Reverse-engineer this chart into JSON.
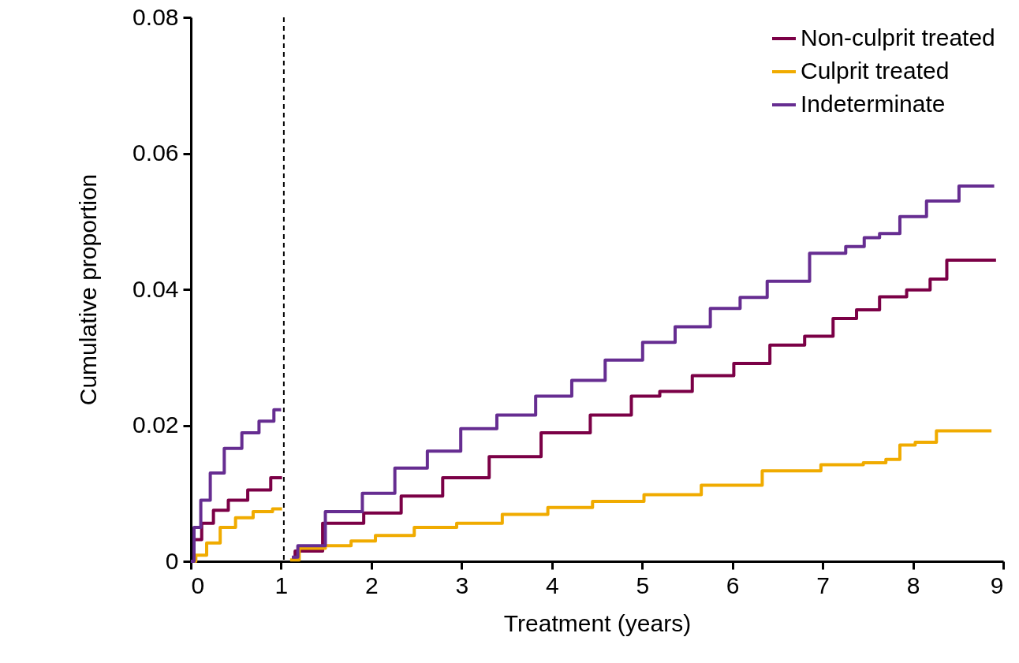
{
  "chart_data": {
    "type": "step",
    "xlabel": "Treatment (years)",
    "ylabel": "Cumulative proportion",
    "xlim": [
      0,
      9
    ],
    "xticks": [
      0,
      1,
      2,
      3,
      4,
      5,
      6,
      7,
      8,
      9
    ],
    "ylim": [
      0,
      0.08
    ],
    "yticks": [
      0,
      0.02,
      0.04,
      0.06,
      0.08
    ],
    "grid": false,
    "legend": "top right",
    "line_style": "solid",
    "marker": "none",
    "ref_lines": [
      {
        "axis": "x",
        "value": 1.03,
        "line_style": "dashed",
        "color": "#000000"
      }
    ],
    "series": [
      {
        "name": "Non-culprit treated",
        "color": "#7b0046",
        "x": [
          0,
          0.07,
          0.17,
          0.33,
          0.5,
          0.76,
          1.01,
          null,
          1.12,
          1.19,
          1.73,
          2.1,
          2.56,
          3.02,
          3.59,
          4.17,
          4.68,
          5.08,
          5.31,
          5.8,
          6.23,
          6.6,
          7.0,
          7.23,
          7.52,
          7.74,
          8.12,
          8.26,
          8.49,
          8.92
        ],
        "values": [
          0,
          0.0032,
          0.0056,
          0.0075,
          0.009,
          0.0105,
          0.0123,
          null,
          0.0005,
          0.0015,
          0.0056,
          0.0071,
          0.0096,
          0.0123,
          0.0154,
          0.0189,
          0.0215,
          0.0243,
          0.025,
          0.0273,
          0.0291,
          0.0318,
          0.0331,
          0.0357,
          0.037,
          0.0389,
          0.0399,
          0.0415,
          0.0443,
          0.0443
        ]
      },
      {
        "name": "Culprit treated",
        "color": "#f0ab00",
        "x": [
          0,
          0.11,
          0.24,
          0.41,
          0.58,
          0.8,
          1.01,
          null,
          1.1,
          1.3,
          1.68,
          1.87,
          2.22,
          2.73,
          3.16,
          3.74,
          4.17,
          4.73,
          5.31,
          6.0,
          6.66,
          7.3,
          7.6,
          7.8,
          7.91,
          8.14,
          8.38,
          8.87
        ],
        "values": [
          0,
          0.0009,
          0.0027,
          0.005,
          0.0064,
          0.0073,
          0.0077,
          null,
          0.0002,
          0.0019,
          0.0023,
          0.003,
          0.0038,
          0.005,
          0.0056,
          0.0069,
          0.0079,
          0.0088,
          0.0098,
          0.0112,
          0.0133,
          0.0142,
          0.0145,
          0.015,
          0.0171,
          0.0175,
          0.0192,
          0.0192
        ]
      },
      {
        "name": "Indeterminate",
        "color": "#662d91",
        "x": [
          0,
          0.07,
          0.15,
          0.28,
          0.46,
          0.67,
          0.84,
          1.0,
          null,
          1.12,
          1.25,
          1.73,
          2.07,
          2.45,
          2.79,
          3.19,
          3.59,
          4.05,
          4.39,
          4.79,
          5.22,
          5.51,
          6.0,
          6.17,
          6.6,
          7.11,
          7.4,
          7.52,
          7.74,
          7.97,
          8.33,
          8.69,
          8.9
        ],
        "values": [
          0,
          0.005,
          0.009,
          0.013,
          0.0166,
          0.0189,
          0.0206,
          0.0223,
          null,
          0.0006,
          0.0023,
          0.0073,
          0.01,
          0.0137,
          0.0162,
          0.0195,
          0.0215,
          0.0243,
          0.0266,
          0.0296,
          0.0322,
          0.0345,
          0.0372,
          0.0388,
          0.0412,
          0.0453,
          0.0463,
          0.0476,
          0.0482,
          0.0507,
          0.053,
          0.0552,
          0.0552
        ]
      }
    ]
  }
}
